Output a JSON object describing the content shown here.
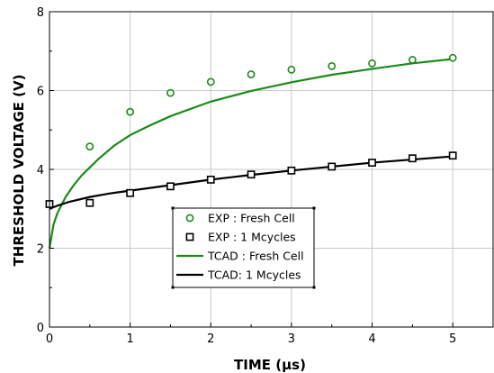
{
  "chart_data": {
    "type": "line",
    "xlabel": "TIME (μs)",
    "ylabel": "THRESHOLD VOLTAGE (V)",
    "xlim": [
      0,
      5.5
    ],
    "ylim": [
      0,
      8
    ],
    "x_ticks": [
      0,
      1,
      2,
      3,
      4,
      5
    ],
    "y_ticks": [
      0,
      2,
      4,
      6,
      8
    ],
    "x_tick_labels": [
      "0",
      "1",
      "2",
      "3",
      "4",
      "5"
    ],
    "y_tick_labels": [
      "0",
      "2",
      "4",
      "6",
      "8"
    ],
    "grid": true,
    "legend_placement": "lower-center",
    "series": [
      {
        "name": "EXP : Fresh Cell",
        "kind": "marker",
        "marker": "circle",
        "color": "#1a8a1a",
        "x": [
          0.5,
          1.0,
          1.5,
          2.0,
          2.5,
          3.0,
          3.5,
          4.0,
          4.5,
          5.0
        ],
        "y": [
          4.58,
          5.46,
          5.94,
          6.22,
          6.41,
          6.53,
          6.62,
          6.69,
          6.78,
          6.83
        ]
      },
      {
        "name": "EXP : 1 Mcycles",
        "kind": "marker",
        "marker": "square",
        "color": "#000000",
        "x": [
          0.0,
          0.5,
          1.0,
          1.5,
          2.0,
          2.5,
          3.0,
          3.5,
          4.0,
          4.5,
          5.0
        ],
        "y": [
          3.12,
          3.15,
          3.4,
          3.57,
          3.74,
          3.87,
          3.97,
          4.07,
          4.17,
          4.28,
          4.35
        ]
      },
      {
        "name": "TCAD : Fresh Cell",
        "kind": "line",
        "color": "#1a8a1a",
        "x": [
          0.0,
          0.05,
          0.1,
          0.2,
          0.3,
          0.4,
          0.5,
          0.6,
          0.8,
          1.0,
          1.25,
          1.5,
          2.0,
          2.5,
          3.0,
          3.5,
          4.0,
          4.5,
          5.0
        ],
        "y": [
          2.0,
          2.6,
          2.9,
          3.3,
          3.6,
          3.85,
          4.05,
          4.25,
          4.6,
          4.87,
          5.12,
          5.35,
          5.72,
          5.99,
          6.21,
          6.4,
          6.55,
          6.69,
          6.8
        ]
      },
      {
        "name": "TCAD: 1 Mcycles",
        "kind": "line",
        "color": "#000000",
        "x": [
          0.0,
          0.1,
          0.25,
          0.5,
          0.75,
          1.0,
          1.5,
          2.0,
          2.5,
          3.0,
          3.5,
          4.0,
          4.5,
          5.0
        ],
        "y": [
          3.0,
          3.08,
          3.18,
          3.3,
          3.39,
          3.46,
          3.6,
          3.74,
          3.86,
          3.97,
          4.07,
          4.17,
          4.25,
          4.33
        ]
      }
    ]
  }
}
